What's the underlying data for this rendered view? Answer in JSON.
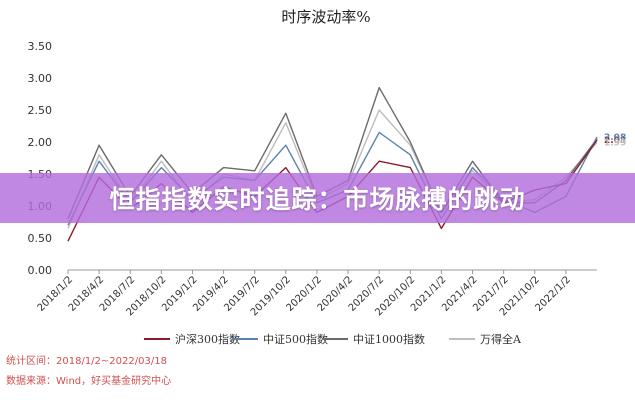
{
  "banner": {
    "text": "恒指指数实时追踪：市场脉搏的跳动"
  },
  "footer": {
    "period": "统计区间：2018/1/2~2022/03/18",
    "source": "数据来源：Wind，好买基金研究中心"
  },
  "colors": {
    "csi300": "#8b1a2b",
    "csi500": "#5b83ae",
    "csi1000": "#6b6b6b",
    "wind_a": "#bdbdbd"
  },
  "chart_data": {
    "type": "line",
    "title": "时序波动率%",
    "xlabel": "",
    "ylabel": "",
    "ylim": [
      0,
      3.5
    ],
    "yticks": [
      "0.00",
      "0.50",
      "1.00",
      "1.50",
      "2.00",
      "2.50",
      "3.00",
      "3.50"
    ],
    "x": [
      "2018/1/2",
      "2018/4/2",
      "2018/7/2",
      "2018/10/2",
      "2019/1/2",
      "2019/4/2",
      "2019/7/2",
      "2019/10/2",
      "2020/1/2",
      "2020/4/2",
      "2020/7/2",
      "2020/10/2",
      "2021/1/2",
      "2021/4/2",
      "2021/7/2",
      "2021/10/2",
      "2022/1/2",
      "2022/3/18"
    ],
    "grid": false,
    "legend_position": "bottom",
    "series": [
      {
        "name": "沪深300指数",
        "color": "#8b1a2b",
        "end_label": "2.03",
        "values": [
          0.45,
          1.45,
          0.95,
          1.35,
          0.9,
          1.3,
          1.15,
          1.6,
          0.9,
          1.15,
          1.7,
          1.6,
          0.65,
          1.45,
          1.05,
          1.25,
          1.35,
          2.03
        ]
      },
      {
        "name": "中证500指数",
        "color": "#5b83ae",
        "end_label": "2.08",
        "values": [
          0.7,
          1.7,
          1.05,
          1.6,
          1.1,
          1.45,
          1.4,
          1.95,
          1.05,
          1.25,
          2.15,
          1.8,
          0.8,
          1.6,
          1.1,
          0.9,
          1.15,
          2.08
        ]
      },
      {
        "name": "中证1000指数",
        "color": "#6b6b6b",
        "end_label": "",
        "values": [
          0.8,
          1.95,
          1.15,
          1.8,
          1.2,
          1.6,
          1.55,
          2.45,
          1.15,
          1.4,
          2.85,
          2.0,
          0.9,
          1.7,
          1.05,
          1.05,
          1.4,
          2.05
        ]
      },
      {
        "name": "万得全A",
        "color": "#bdbdbd",
        "end_label": "1.99",
        "values": [
          0.65,
          1.8,
          1.05,
          1.7,
          1.05,
          1.5,
          1.4,
          2.3,
          1.1,
          1.35,
          2.5,
          1.95,
          0.9,
          1.55,
          1.05,
          1.1,
          1.45,
          1.99
        ]
      }
    ]
  }
}
